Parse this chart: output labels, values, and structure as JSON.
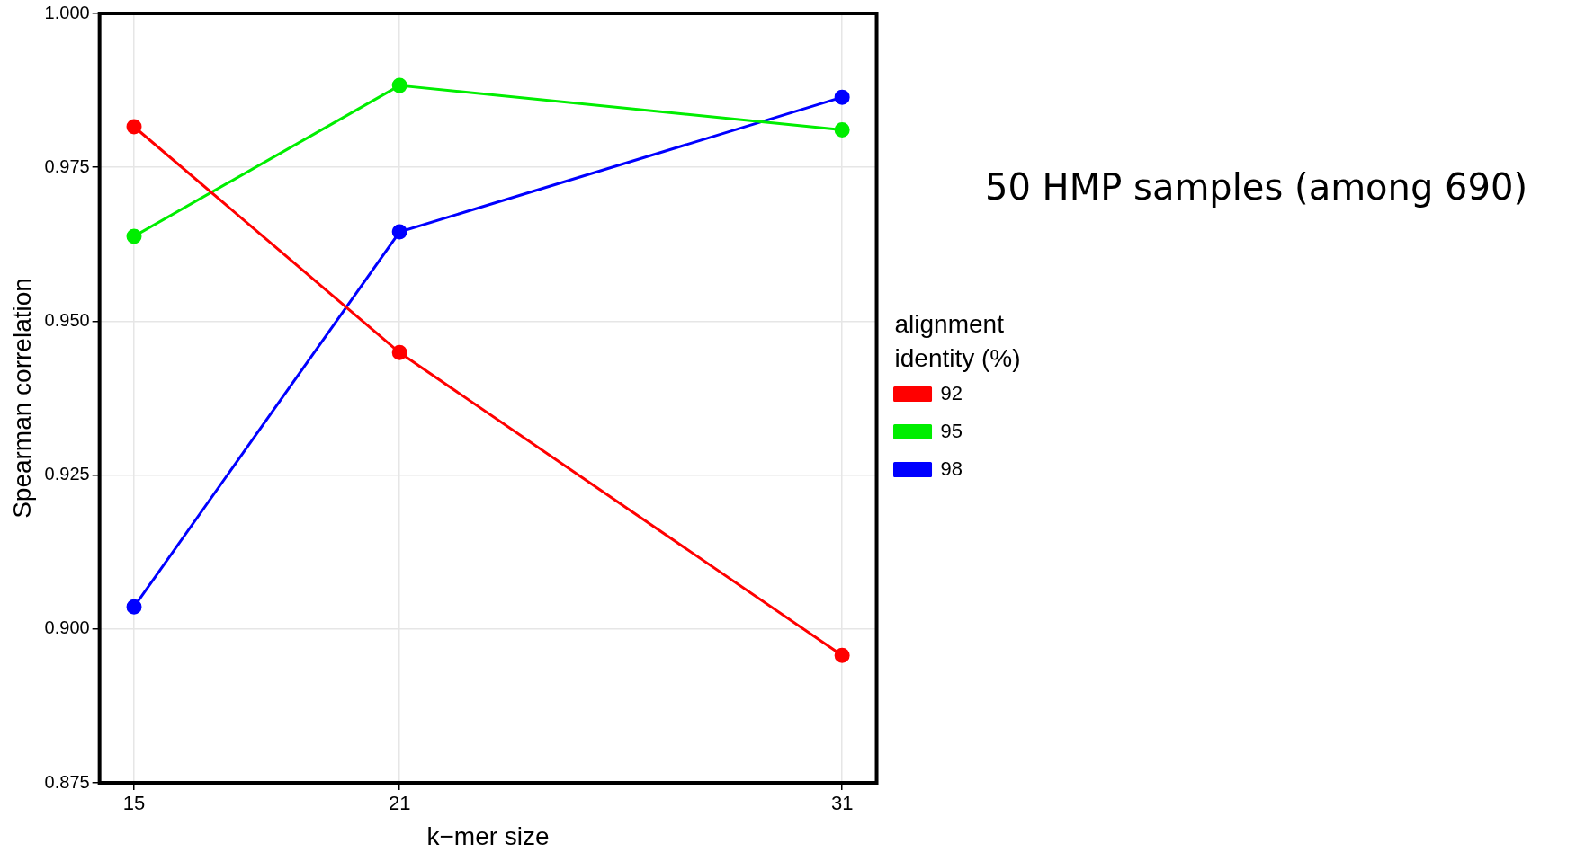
{
  "chart_data": {
    "type": "line",
    "title": "50 HMP samples (among 690)",
    "xlabel": "k−mer size",
    "ylabel": "Spearman correlation",
    "legend_title": "alignment identity (%)",
    "x": [
      15,
      21,
      31
    ],
    "series": [
      {
        "name": "92",
        "color": "#ff0000",
        "values": [
          0.9816,
          0.9449,
          0.8957
        ]
      },
      {
        "name": "95",
        "color": "#00ee00",
        "values": [
          0.9638,
          0.9883,
          0.9811
        ]
      },
      {
        "name": "98",
        "color": "#0000ff",
        "values": [
          0.9036,
          0.9645,
          0.9864
        ]
      }
    ],
    "xlim": [
      14.22,
      31.78
    ],
    "xticks": [
      15,
      21,
      31
    ],
    "ylim": [
      0.875,
      1.0
    ],
    "yticks": [
      {
        "value": 0.875,
        "label": "0.875"
      },
      {
        "value": 0.9,
        "label": "0.900"
      },
      {
        "value": 0.925,
        "label": "0.925"
      },
      {
        "value": 0.95,
        "label": "0.950"
      },
      {
        "value": 0.975,
        "label": "0.975"
      },
      {
        "value": 1.0,
        "label": "1.000"
      }
    ],
    "grid": true,
    "legend": "right",
    "marker": "circle",
    "line_style": "solid"
  }
}
